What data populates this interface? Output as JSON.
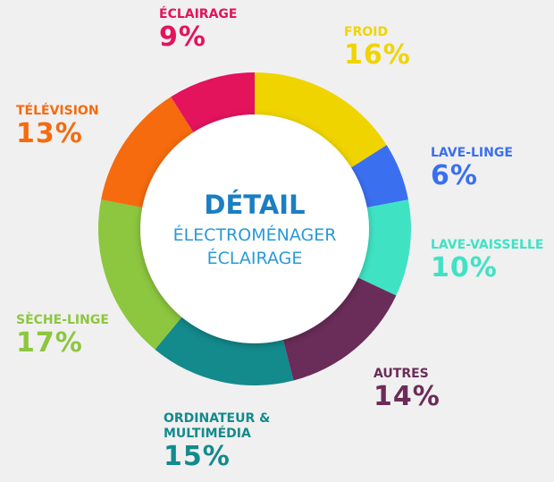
{
  "chart_data": {
    "type": "pie",
    "donut": true,
    "title": "DÉTAIL",
    "subtitle": [
      "ÉLECTROMÉNAGER",
      "ÉCLAIRAGE"
    ],
    "categories": [
      "FROID",
      "LAVE-LINGE",
      "LAVE-VAISSELLE",
      "AUTRES",
      "ORDINATEUR & MULTIMÉDIA",
      "SÈCHE-LINGE",
      "TÉLÉVISION",
      "ÉCLAIRAGE"
    ],
    "values": [
      16,
      6,
      10,
      14,
      15,
      17,
      13,
      9
    ],
    "value_labels": [
      "16%",
      "6%",
      "10%",
      "14%",
      "15%",
      "17%",
      "13%",
      "9%"
    ],
    "colors": [
      "#f0d400",
      "#3a6ff0",
      "#3fe3c4",
      "#6a2c58",
      "#138a8c",
      "#8dc63f",
      "#f56b0e",
      "#e3135c"
    ]
  }
}
